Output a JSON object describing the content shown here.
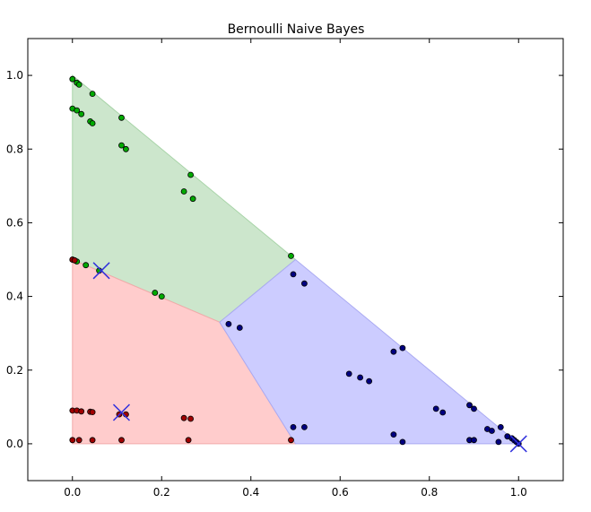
{
  "chart_data": {
    "type": "scatter",
    "title": "Bernoulli Naive Bayes",
    "xlabel": "",
    "ylabel": "",
    "xlim": [
      -0.1,
      1.1
    ],
    "ylim": [
      -0.1,
      1.1
    ],
    "x_ticks": [
      "0.0",
      "0.2",
      "0.4",
      "0.6",
      "0.8",
      "1.0"
    ],
    "y_ticks": [
      "0.0",
      "0.2",
      "0.4",
      "0.6",
      "0.8",
      "1.0"
    ],
    "grid": false,
    "legend": "none",
    "regions": [
      {
        "color": "#cce6cc",
        "edge": "#a8d4a8",
        "vertices": [
          [
            0,
            1
          ],
          [
            0,
            0.5
          ],
          [
            0.33,
            0.33
          ],
          [
            0.5,
            0.5
          ]
        ]
      },
      {
        "color": "#ffcccc",
        "edge": "#f2aaaa",
        "vertices": [
          [
            0,
            0.5
          ],
          [
            0,
            0
          ],
          [
            0.5,
            0
          ],
          [
            0.33,
            0.33
          ]
        ]
      },
      {
        "color": "#ccccff",
        "edge": "#aaaaf2",
        "vertices": [
          [
            0.33,
            0.33
          ],
          [
            0.5,
            0
          ],
          [
            1,
            0
          ],
          [
            0.5,
            0.5
          ]
        ]
      }
    ],
    "series": [
      {
        "color": "#00aa00",
        "values": [
          [
            0.0,
            0.99
          ],
          [
            0.01,
            0.98
          ],
          [
            0.015,
            0.975
          ],
          [
            0.0,
            0.91
          ],
          [
            0.01,
            0.905
          ],
          [
            0.02,
            0.895
          ],
          [
            0.04,
            0.875
          ],
          [
            0.045,
            0.87
          ],
          [
            0.045,
            0.95
          ],
          [
            0.11,
            0.885
          ],
          [
            0.11,
            0.81
          ],
          [
            0.12,
            0.8
          ],
          [
            0.265,
            0.73
          ],
          [
            0.25,
            0.685
          ],
          [
            0.27,
            0.665
          ],
          [
            0.49,
            0.51
          ],
          [
            0.0,
            0.5
          ],
          [
            0.01,
            0.495
          ],
          [
            0.03,
            0.485
          ],
          [
            0.06,
            0.47
          ],
          [
            0.185,
            0.41
          ],
          [
            0.2,
            0.4
          ]
        ]
      },
      {
        "color": "#a00000",
        "values": [
          [
            0.0,
            0.5
          ],
          [
            0.005,
            0.498
          ],
          [
            0.0,
            0.09
          ],
          [
            0.01,
            0.09
          ],
          [
            0.02,
            0.088
          ],
          [
            0.04,
            0.087
          ],
          [
            0.045,
            0.086
          ],
          [
            0.0,
            0.01
          ],
          [
            0.015,
            0.01
          ],
          [
            0.045,
            0.01
          ],
          [
            0.105,
            0.08
          ],
          [
            0.12,
            0.08
          ],
          [
            0.11,
            0.01
          ],
          [
            0.25,
            0.07
          ],
          [
            0.265,
            0.068
          ],
          [
            0.26,
            0.01
          ],
          [
            0.49,
            0.01
          ]
        ]
      },
      {
        "color": "#000080",
        "values": [
          [
            0.495,
            0.46
          ],
          [
            0.52,
            0.435
          ],
          [
            0.35,
            0.325
          ],
          [
            0.375,
            0.315
          ],
          [
            0.72,
            0.25
          ],
          [
            0.74,
            0.26
          ],
          [
            0.62,
            0.19
          ],
          [
            0.645,
            0.18
          ],
          [
            0.665,
            0.17
          ],
          [
            0.815,
            0.095
          ],
          [
            0.83,
            0.085
          ],
          [
            0.89,
            0.105
          ],
          [
            0.9,
            0.095
          ],
          [
            0.93,
            0.04
          ],
          [
            0.94,
            0.035
          ],
          [
            0.96,
            0.045
          ],
          [
            0.975,
            0.02
          ],
          [
            0.985,
            0.015
          ],
          [
            0.99,
            0.01
          ],
          [
            0.995,
            0.005
          ],
          [
            1.0,
            0.0
          ],
          [
            0.955,
            0.005
          ],
          [
            0.72,
            0.025
          ],
          [
            0.74,
            0.005
          ],
          [
            0.89,
            0.01
          ],
          [
            0.9,
            0.01
          ],
          [
            0.495,
            0.045
          ],
          [
            0.52,
            0.045
          ]
        ]
      }
    ],
    "markers": {
      "color": "#3030dd",
      "values": [
        [
          0.065,
          0.47
        ],
        [
          0.11,
          0.085
        ],
        [
          1.0,
          0.0
        ]
      ]
    }
  }
}
